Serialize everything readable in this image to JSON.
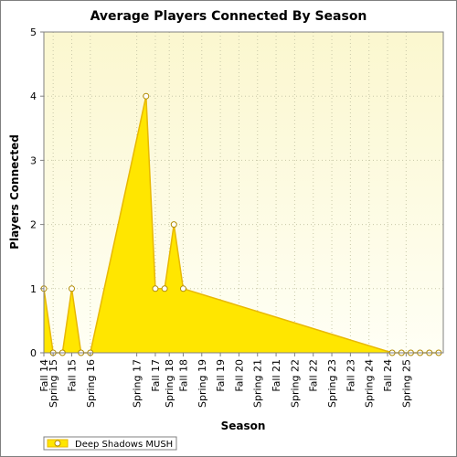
{
  "chart_data": {
    "type": "area",
    "title": "Average Players Connected By Season",
    "xlabel": "Season",
    "ylabel": "Players Connected",
    "ylim": [
      0,
      5
    ],
    "yticks": [
      "0",
      "1",
      "2",
      "3",
      "4",
      "5"
    ],
    "x_labels": [
      "Fall 14",
      "Spring 15",
      "Fall 15",
      "Spring 16",
      "Spring 17",
      "Fall 17",
      "Spring 18",
      "Fall 18",
      "Spring 19",
      "Fall 19",
      "Fall 20",
      "Spring 21",
      "Fall 21",
      "Spring 22",
      "Fall 22",
      "Spring 23",
      "Fall 23",
      "Spring 24",
      "Fall 24",
      "Spring 25"
    ],
    "x_positions": [
      0,
      1,
      3,
      5,
      10,
      12,
      13.5,
      15,
      17,
      19,
      21,
      23,
      25,
      27,
      29,
      31,
      33,
      35,
      37,
      39
    ],
    "x_range": [
      0,
      43
    ],
    "series": [
      {
        "name": "Deep Shadows MUSH",
        "x": [
          0,
          1,
          2,
          3,
          4,
          5,
          11,
          12,
          13,
          14,
          15,
          37.5,
          38.5,
          39.5,
          40.5,
          41.5,
          42.5
        ],
        "values": [
          1,
          0,
          0,
          1,
          0,
          0,
          4,
          1,
          1,
          2,
          1,
          0,
          0,
          0,
          0,
          0,
          0
        ]
      }
    ],
    "grid": true,
    "legend_position": "bottom-left",
    "colors": {
      "fill": "#ffe600",
      "line": "#e8b800",
      "marker_edge": "#b08a00",
      "marker_fill": "#ffffff",
      "plot_bg_top": "#fbf7cf",
      "plot_bg_bottom": "#fffff5",
      "grid": "#c8c8a8",
      "frame": "#808080"
    }
  }
}
